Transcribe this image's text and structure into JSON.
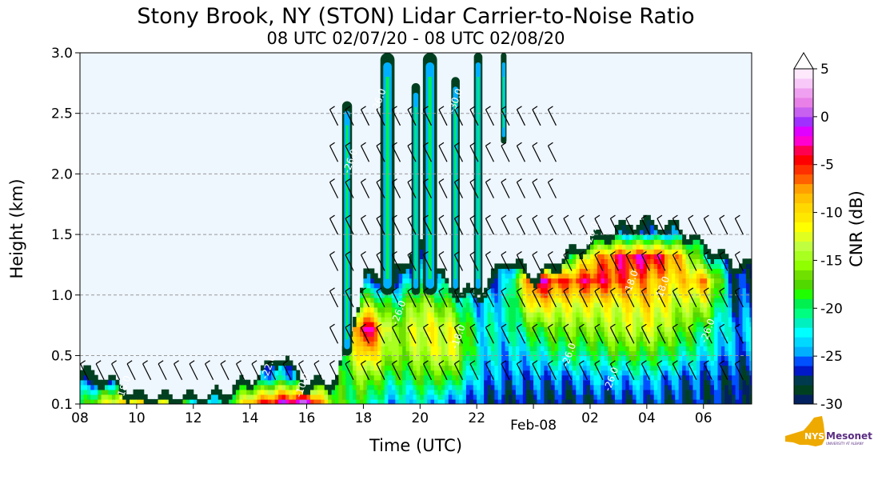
{
  "chart_data": {
    "type": "heatmap",
    "title": "Stony Brook, NY (STON) Lidar Carrier-to-Noise Ratio",
    "subtitle": "08 UTC 02/07/20 - 08 UTC 02/08/20",
    "xlabel": "Time (UTC)",
    "ylabel": "Height (km)",
    "x_hours_since_start_range": [
      0,
      23.7
    ],
    "ylim": [
      0.1,
      3.0
    ],
    "x_ticks": [
      {
        "h": 0,
        "label": "08"
      },
      {
        "h": 2,
        "label": "10"
      },
      {
        "h": 4,
        "label": "12"
      },
      {
        "h": 6,
        "label": "14"
      },
      {
        "h": 8,
        "label": "16"
      },
      {
        "h": 10,
        "label": "18"
      },
      {
        "h": 12,
        "label": "20"
      },
      {
        "h": 14,
        "label": "22"
      },
      {
        "h": 16,
        "label": "Feb-08",
        "low": true
      },
      {
        "h": 18,
        "label": "02"
      },
      {
        "h": 20,
        "label": "04"
      },
      {
        "h": 22,
        "label": "06"
      }
    ],
    "y_ticks": [
      {
        "v": 0.1,
        "label": "0.1"
      },
      {
        "v": 0.5,
        "label": "0.5"
      },
      {
        "v": 1.0,
        "label": "1.0"
      },
      {
        "v": 1.5,
        "label": "1.5"
      },
      {
        "v": 2.0,
        "label": "2.0"
      },
      {
        "v": 2.5,
        "label": "2.5"
      },
      {
        "v": 3.0,
        "label": "3.0"
      }
    ],
    "grid": "horizontal dashed",
    "heights_km": [
      0.1,
      0.3,
      0.5,
      0.7,
      0.9,
      1.1,
      1.3,
      1.5
    ],
    "hours": [
      0,
      1,
      2,
      3,
      4,
      5,
      6,
      7,
      8,
      9,
      10,
      11,
      12,
      13,
      14,
      15,
      16,
      17,
      18,
      19,
      20,
      21,
      22,
      23
    ],
    "echo_top_km": [
      0.35,
      0.3,
      0.15,
      0.15,
      0.15,
      0.18,
      0.3,
      0.5,
      0.25,
      0.3,
      1.15,
      1.2,
      1.4,
      1.05,
      1.0,
      1.3,
      1.15,
      1.3,
      1.45,
      1.55,
      1.6,
      1.55,
      1.4,
      1.25
    ],
    "cnr_db": [
      [
        -20,
        -27,
        null,
        null,
        null,
        null,
        null,
        null
      ],
      [
        -12,
        -28,
        null,
        null,
        null,
        null,
        null,
        null
      ],
      [
        -10,
        null,
        null,
        null,
        null,
        null,
        null,
        null
      ],
      [
        -14,
        null,
        null,
        null,
        null,
        null,
        null,
        null
      ],
      [
        -22,
        null,
        null,
        null,
        null,
        null,
        null,
        null
      ],
      [
        -22,
        null,
        null,
        null,
        null,
        null,
        null,
        null
      ],
      [
        -8,
        -26,
        null,
        null,
        null,
        null,
        null,
        null
      ],
      [
        -3,
        -22,
        -28,
        null,
        null,
        null,
        null,
        null
      ],
      [
        -1,
        -25,
        null,
        null,
        null,
        null,
        null,
        null
      ],
      [
        -18,
        -20,
        -22,
        -24,
        -26,
        -28,
        null,
        null
      ],
      [
        -20,
        -15,
        -8,
        -1,
        -14,
        -26,
        null,
        null
      ],
      [
        -24,
        -20,
        -16,
        -16,
        -20,
        -26,
        -28,
        null
      ],
      [
        -22,
        -18,
        -14,
        -12,
        -14,
        -22,
        -28,
        null
      ],
      [
        -25,
        -18,
        -12,
        -12,
        -18,
        -24,
        null,
        null
      ],
      [
        -26,
        -24,
        -22,
        -22,
        -24,
        -27,
        null,
        null
      ],
      [
        -28,
        -25,
        -24,
        -22,
        -22,
        -24,
        -27,
        null
      ],
      [
        -27,
        -25,
        -22,
        -18,
        -10,
        -2,
        -28,
        null
      ],
      [
        -28,
        -25,
        -20,
        -16,
        -12,
        -6,
        -22,
        null
      ],
      [
        -27,
        -24,
        -20,
        -16,
        -12,
        -4,
        -10,
        -26
      ],
      [
        -27,
        -24,
        -18,
        -14,
        -12,
        -6,
        -4,
        -26
      ],
      [
        -26,
        -23,
        -18,
        -13,
        -10,
        -8,
        -3,
        -26
      ],
      [
        -27,
        -25,
        -20,
        -16,
        -14,
        -10,
        -8,
        -26
      ],
      [
        -27,
        -26,
        -22,
        -20,
        -14,
        -8,
        -22,
        null
      ],
      [
        -28,
        -27,
        -25,
        -24,
        -26,
        -27,
        -28,
        null
      ]
    ],
    "plumes": [
      {
        "h0": 9.25,
        "h1": 9.6,
        "bottom_km": 0.5,
        "top_km": 2.6
      },
      {
        "h0": 10.6,
        "h1": 11.1,
        "bottom_km": 1.0,
        "top_km": 3.0
      },
      {
        "h0": 11.7,
        "h1": 12.0,
        "bottom_km": 1.0,
        "top_km": 2.75
      },
      {
        "h0": 12.1,
        "h1": 12.6,
        "bottom_km": 1.0,
        "top_km": 3.0
      },
      {
        "h0": 13.1,
        "h1": 13.4,
        "bottom_km": 1.0,
        "top_km": 2.8
      },
      {
        "h0": 13.9,
        "h1": 14.2,
        "bottom_km": 1.0,
        "top_km": 3.0
      },
      {
        "h0": 14.85,
        "h1": 15.05,
        "bottom_km": 2.25,
        "top_km": 3.0
      }
    ],
    "contour_labels": [
      {
        "h": 9.5,
        "km": 2.0,
        "text": "-26.0"
      },
      {
        "h": 10.5,
        "km": 2.5,
        "text": "-26.0"
      },
      {
        "h": 13.2,
        "km": 2.5,
        "text": "-30.0"
      },
      {
        "h": 11.2,
        "km": 0.75,
        "text": "-26.0"
      },
      {
        "h": 13.3,
        "km": 0.55,
        "text": "-18.0"
      },
      {
        "h": 18.0,
        "km": 1.4,
        "text": "-26.0"
      },
      {
        "h": 17.2,
        "km": 0.4,
        "text": "-26.0"
      },
      {
        "h": 18.7,
        "km": 0.2,
        "text": "-26.0"
      },
      {
        "h": 20.5,
        "km": 0.95,
        "text": "-18.0"
      },
      {
        "h": 22.1,
        "km": 0.6,
        "text": "-26.0"
      },
      {
        "h": 6.6,
        "km": 0.3,
        "text": "-22.0"
      },
      {
        "h": 1.5,
        "km": 0.13,
        "text": "-18.0"
      },
      {
        "h": 7.8,
        "km": 0.15,
        "text": "-10.0"
      },
      {
        "h": 19.4,
        "km": 1.0,
        "text": "-18.0"
      }
    ],
    "colorbar": {
      "label": "CNR (dB)",
      "min": -30,
      "max": 5,
      "extend": "max",
      "ticks": [
        "5",
        "0",
        "-5",
        "-10",
        "-15",
        "-20",
        "-25",
        "-30"
      ],
      "colors": [
        "#03215e",
        "#004020",
        "#003a4f",
        "#0018c8",
        "#0050ff",
        "#00b0ff",
        "#00d8ff",
        "#00ffff",
        "#00f0c0",
        "#00ff80",
        "#00f050",
        "#20ff00",
        "#50d800",
        "#70e000",
        "#90ff00",
        "#a8ff20",
        "#c0ff40",
        "#e0ff20",
        "#ffff00",
        "#ffe800",
        "#ffd800",
        "#ffc000",
        "#ffa000",
        "#ff6000",
        "#ff3000",
        "#ff0000",
        "#ff0050",
        "#ff00d0",
        "#e000ff",
        "#a030ff",
        "#c860f0",
        "#e880e8",
        "#f0a0f0",
        "#f8c8f8",
        "#fde8fc"
      ]
    }
  },
  "logo": {
    "brand": "NYS Mesonet",
    "sub": "UNIVERSITY AT ALBANY"
  },
  "colors": {
    "plot_bg": "#eef6fe",
    "logo_gold": "#eeaa00",
    "logo_purple": "#5a2d82"
  }
}
